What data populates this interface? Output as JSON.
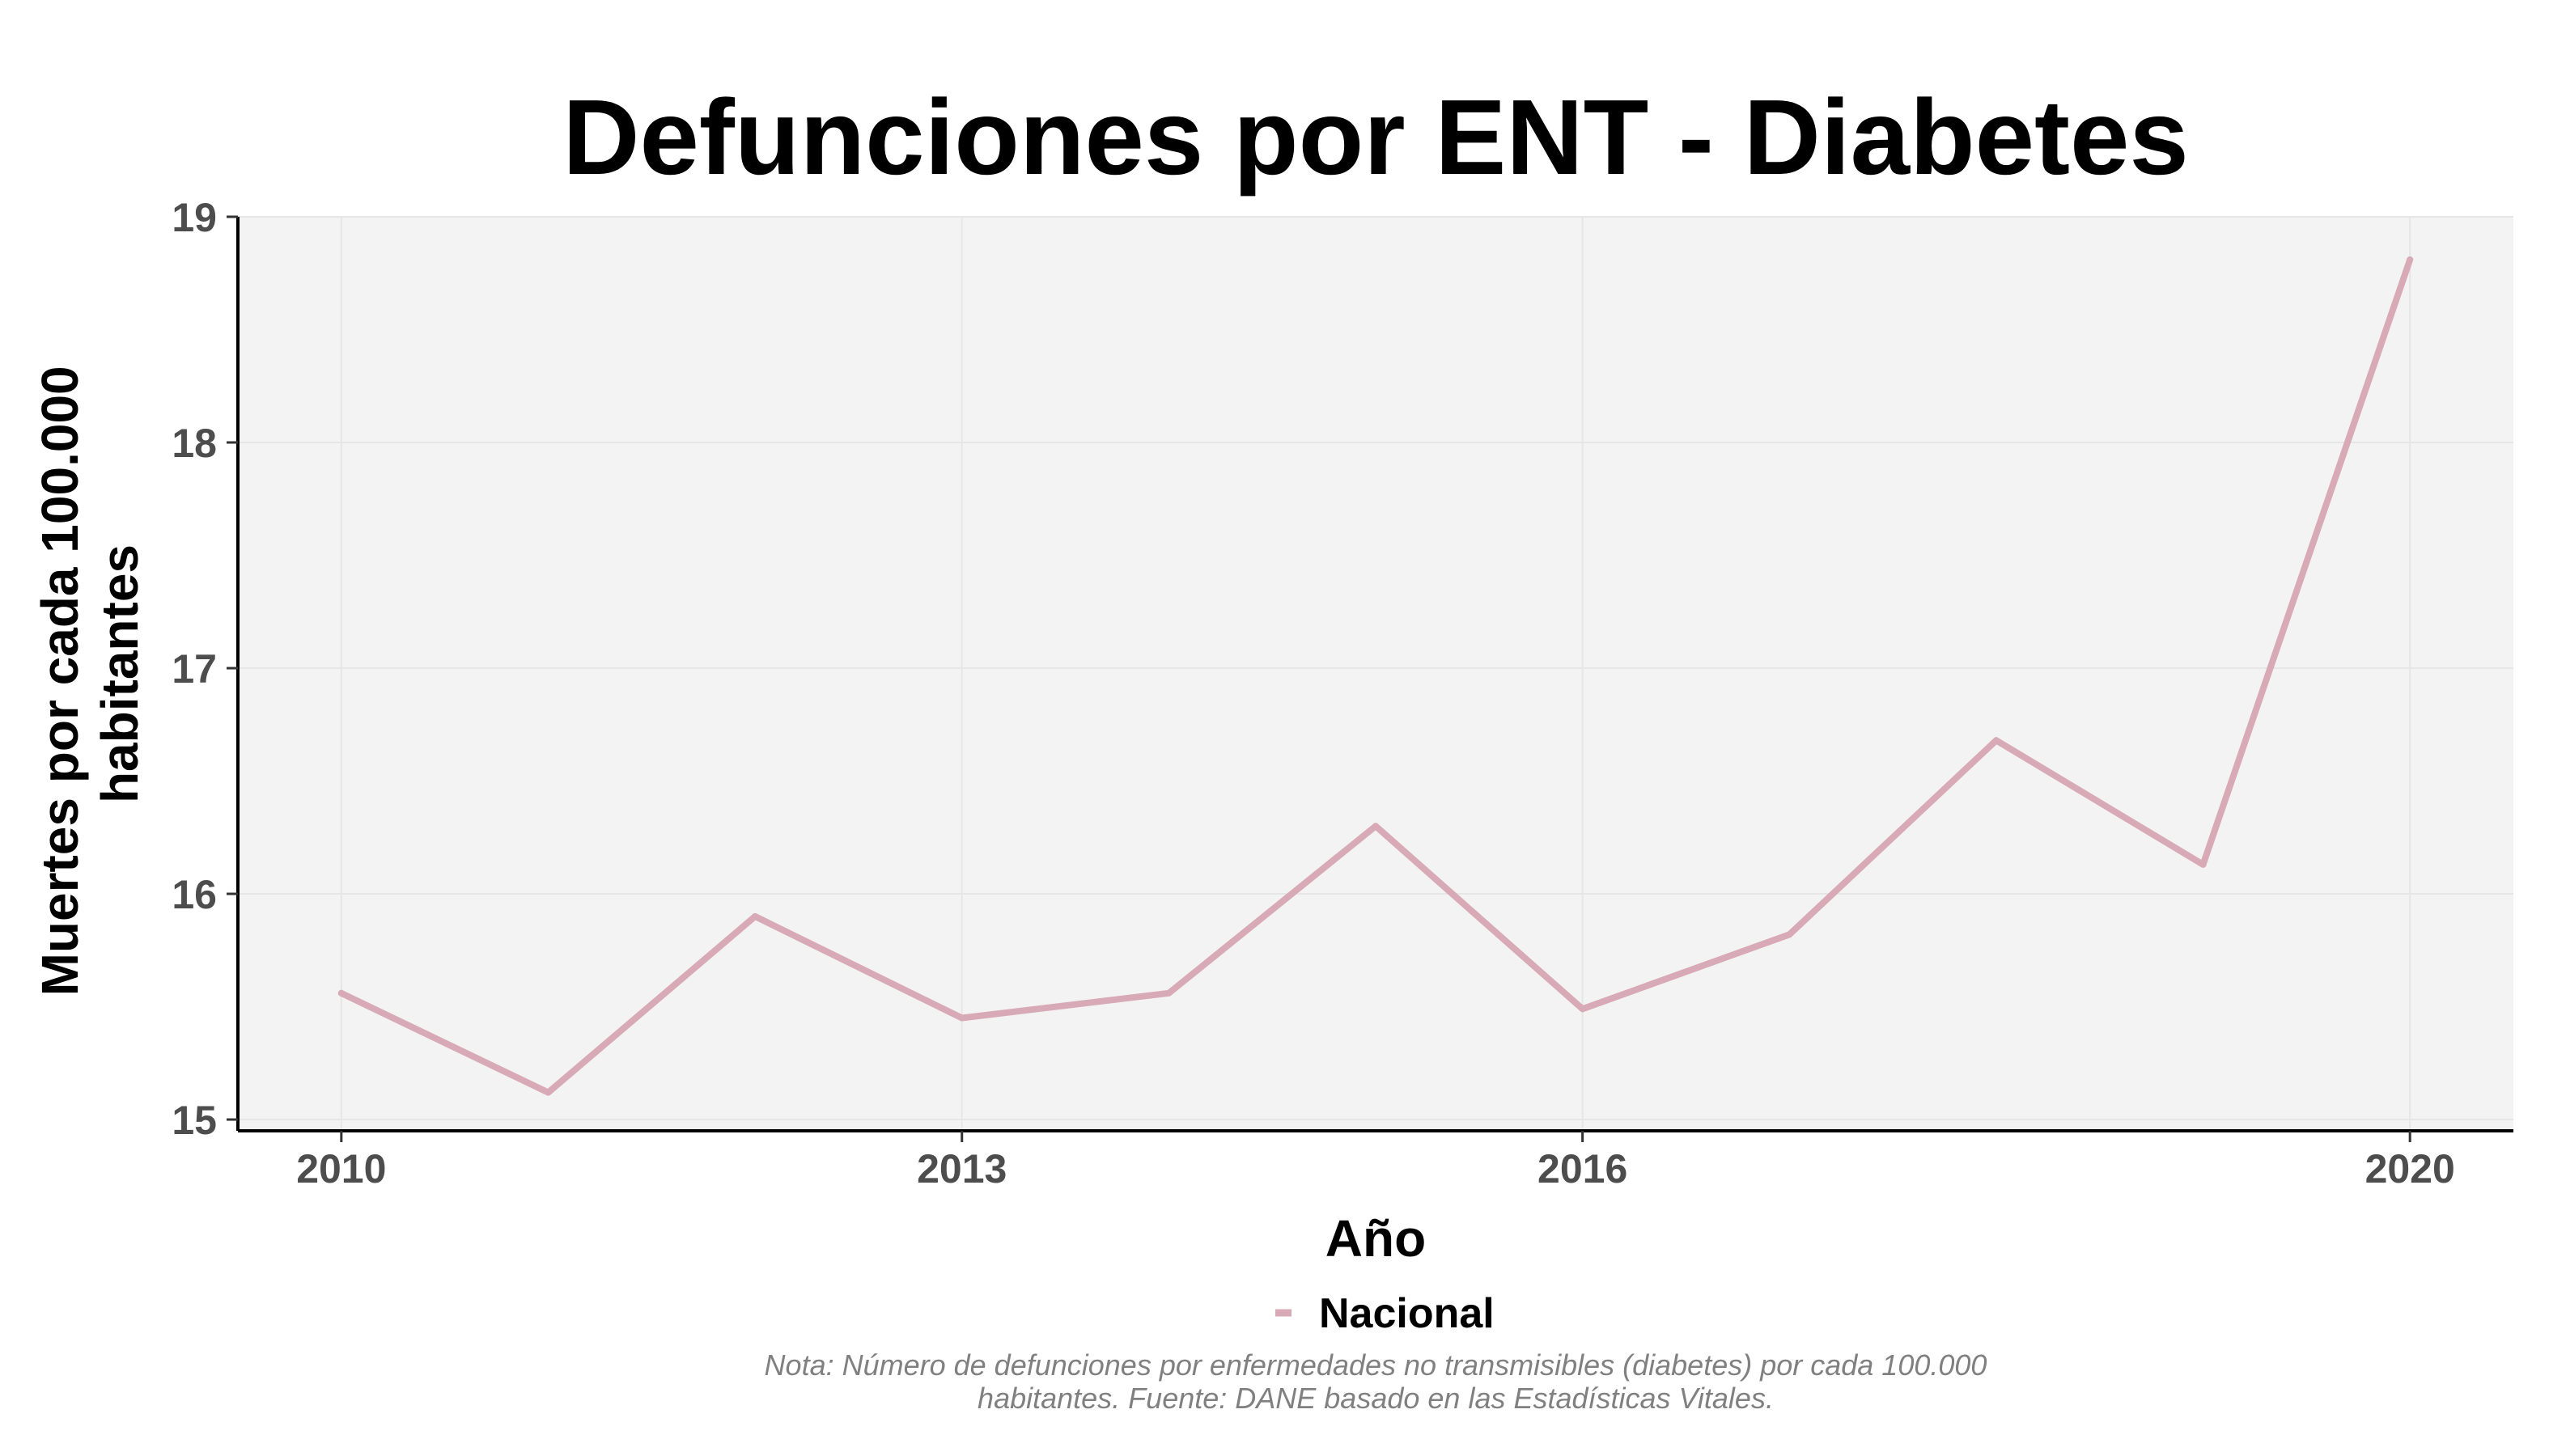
{
  "chart_data": {
    "type": "line",
    "title": "Defunciones por ENT - Diabetes",
    "xlabel": "Año",
    "ylabel": [
      "Muertes por cada 100.000",
      "habitantes"
    ],
    "x": [
      2010,
      2011,
      2012,
      2013,
      2014,
      2015,
      2016,
      2017,
      2018,
      2019,
      2020
    ],
    "series": [
      {
        "name": "Nacional",
        "values": [
          15.56,
          15.12,
          15.9,
          15.45,
          15.56,
          16.3,
          15.49,
          15.82,
          16.68,
          16.13,
          18.81
        ],
        "color": "#d8a9b6"
      }
    ],
    "xticks": [
      "2010",
      "2013",
      "2016",
      "2020"
    ],
    "yticks": [
      "15",
      "16",
      "17",
      "18",
      "19"
    ],
    "xlim": [
      2009.5,
      2020.5
    ],
    "ylim": [
      14.95,
      19
    ],
    "grid": true,
    "legend_position": "bottom",
    "caption": [
      "Nota: Número de defunciones por enfermedades no transmisibles (diabetes) por cada 100.000",
      "habitantes. Fuente: DANE basado en las Estadísticas Vitales."
    ],
    "colors": {
      "panel": "#f3f3f3",
      "grid": "#e6e6e6",
      "axis": "#000000"
    }
  }
}
